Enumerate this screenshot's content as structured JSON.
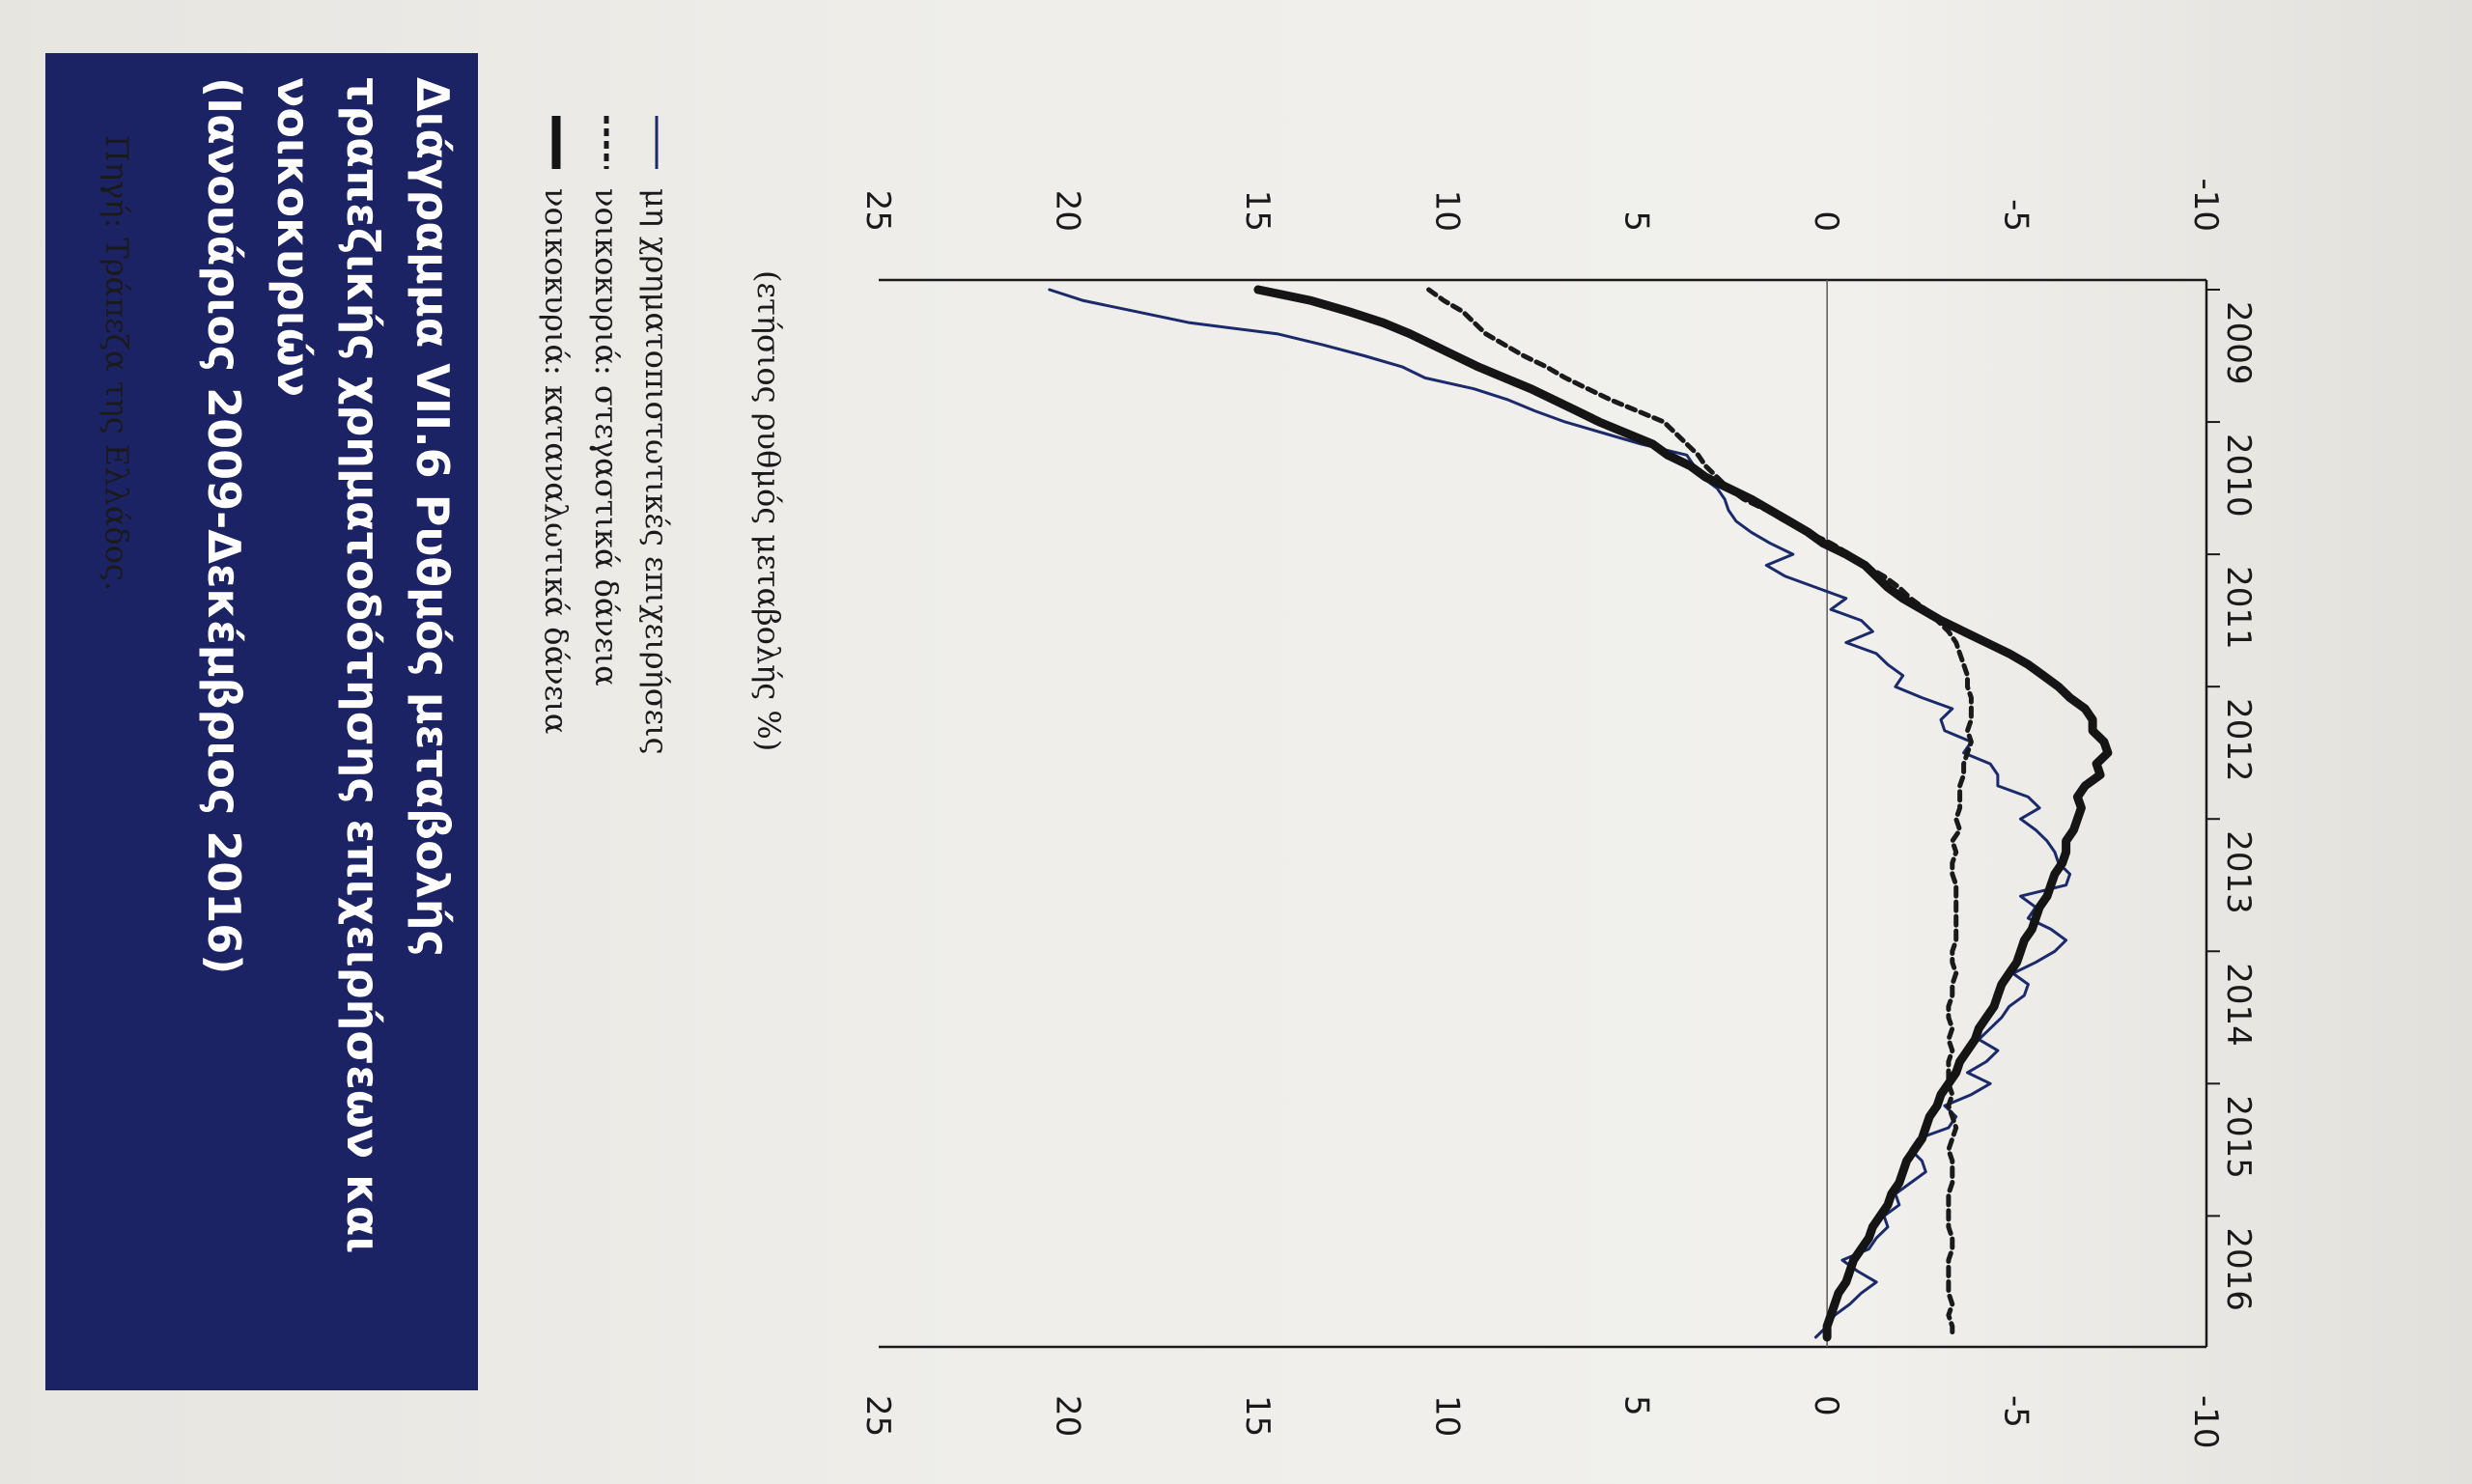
{
  "title": "Διάγραμμα VII.6 Ρυθμός μεταβολής τραπεζικής χρηματοδότησης επιχειρήσεων και νοικοκυριών (Ιανουάριος 2009-Δεκέμβριος 2016)",
  "unit_label": "(ετήσιος ρυθμός μεταβολής %)",
  "source": "Πηγή: Τράπεζα της Ελλάδος.",
  "colors": {
    "title_bg": "#1c2365",
    "series_thin": "#1a2a6a",
    "series_dashed": "#1a1a1a",
    "series_thick": "#151515"
  },
  "chart_data": {
    "type": "line",
    "x_start": "2009-01",
    "x_end": "2016-12",
    "x_tick_labels": [
      "2009",
      "2010",
      "2011",
      "2012",
      "2013",
      "2014",
      "2015",
      "2016"
    ],
    "y_left_ticks": [
      "25",
      "20",
      "15",
      "10",
      "5",
      "0",
      "-5",
      "-10"
    ],
    "y_right_ticks": [
      "25",
      "20",
      "15",
      "10",
      "5",
      "0",
      "-5",
      "-10"
    ],
    "ylim": [
      -10,
      25
    ],
    "grid": false,
    "legend": "top",
    "series": [
      {
        "name": "μη χρηματοπιστωτικές επιχειρήσεις",
        "style": "thin",
        "points": [
          [
            0,
            20.5
          ],
          [
            1,
            19.6
          ],
          [
            2,
            18.2
          ],
          [
            3,
            16.8
          ],
          [
            4,
            14.5
          ],
          [
            5,
            13.3
          ],
          [
            6,
            12.2
          ],
          [
            7,
            11.2
          ],
          [
            8,
            10.6
          ],
          [
            9,
            9.3
          ],
          [
            10,
            8.4
          ],
          [
            11,
            7.7
          ],
          [
            12,
            6.9
          ],
          [
            13,
            5.9
          ],
          [
            14,
            4.9
          ],
          [
            15,
            3.7
          ],
          [
            16,
            3.5
          ],
          [
            17,
            3.3
          ],
          [
            18,
            2.9
          ],
          [
            19,
            2.7
          ],
          [
            20,
            2.6
          ],
          [
            21,
            2.4
          ],
          [
            22,
            2.0
          ],
          [
            23,
            1.5
          ],
          [
            24,
            0.9
          ],
          [
            25,
            1.6
          ],
          [
            26,
            1.1
          ],
          [
            27,
            0.3
          ],
          [
            28,
            -0.5
          ],
          [
            29,
            -0.1
          ],
          [
            30,
            -0.9
          ],
          [
            31,
            -1.2
          ],
          [
            32,
            -0.5
          ],
          [
            33,
            -1.3
          ],
          [
            34,
            -1.6
          ],
          [
            35,
            -2.0
          ],
          [
            36,
            -1.8
          ],
          [
            37,
            -2.5
          ],
          [
            38,
            -3.3
          ],
          [
            39,
            -3.0
          ],
          [
            40,
            -3.1
          ],
          [
            41,
            -3.8
          ],
          [
            42,
            -3.6
          ],
          [
            43,
            -4.3
          ],
          [
            44,
            -4.5
          ],
          [
            45,
            -4.5
          ],
          [
            46,
            -5.3
          ],
          [
            47,
            -5.6
          ],
          [
            48,
            -5.1
          ],
          [
            49,
            -5.5
          ],
          [
            50,
            -5.8
          ],
          [
            51,
            -6.0
          ],
          [
            52,
            -6.1
          ],
          [
            53,
            -6.4
          ],
          [
            54,
            -6.3
          ],
          [
            55,
            -5.1
          ],
          [
            56,
            -5.5
          ],
          [
            57,
            -5.3
          ],
          [
            58,
            -5.9
          ],
          [
            59,
            -6.3
          ],
          [
            60,
            -6.0
          ],
          [
            61,
            -5.5
          ],
          [
            62,
            -4.9
          ],
          [
            63,
            -5.3
          ],
          [
            64,
            -5.2
          ],
          [
            65,
            -4.8
          ],
          [
            66,
            -4.6
          ],
          [
            67,
            -4.3
          ],
          [
            68,
            -4.0
          ],
          [
            69,
            -4.5
          ],
          [
            70,
            -4.2
          ],
          [
            71,
            -3.7
          ],
          [
            72,
            -4.3
          ],
          [
            73,
            -3.8
          ],
          [
            74,
            -3.1
          ],
          [
            75,
            -3.4
          ],
          [
            76,
            -3.2
          ],
          [
            77,
            -2.4
          ],
          [
            78,
            -2.2
          ],
          [
            79,
            -2.5
          ],
          [
            80,
            -2.6
          ],
          [
            81,
            -2.2
          ],
          [
            82,
            -1.8
          ],
          [
            83,
            -1.9
          ],
          [
            84,
            -1.5
          ],
          [
            85,
            -1.6
          ],
          [
            86,
            -1.3
          ],
          [
            87,
            -1.1
          ],
          [
            88,
            -0.4
          ],
          [
            89,
            -0.8
          ],
          [
            90,
            -1.3
          ],
          [
            91,
            -0.9
          ],
          [
            92,
            -0.6
          ],
          [
            93,
            -0.2
          ],
          [
            94,
            0.0
          ],
          [
            95,
            0.3
          ]
        ]
      },
      {
        "name": "νοικοκυριά: στεγαστικά δάνεια",
        "style": "dashed",
        "points": [
          [
            0,
            10.5
          ],
          [
            1,
            10.1
          ],
          [
            2,
            9.6
          ],
          [
            3,
            9.3
          ],
          [
            4,
            9.0
          ],
          [
            5,
            8.5
          ],
          [
            6,
            8.0
          ],
          [
            7,
            7.4
          ],
          [
            8,
            6.9
          ],
          [
            9,
            6.3
          ],
          [
            10,
            5.7
          ],
          [
            11,
            5.0
          ],
          [
            12,
            4.3
          ],
          [
            13,
            4.0
          ],
          [
            14,
            3.7
          ],
          [
            15,
            3.4
          ],
          [
            16,
            3.2
          ],
          [
            17,
            2.9
          ],
          [
            18,
            2.6
          ],
          [
            19,
            2.2
          ],
          [
            20,
            1.6
          ],
          [
            21,
            1.1
          ],
          [
            22,
            0.5
          ],
          [
            23,
            -0.1
          ],
          [
            24,
            -0.6
          ],
          [
            25,
            -1.0
          ],
          [
            26,
            -1.5
          ],
          [
            27,
            -1.9
          ],
          [
            28,
            -2.2
          ],
          [
            29,
            -2.6
          ],
          [
            30,
            -2.9
          ],
          [
            31,
            -3.2
          ],
          [
            32,
            -3.4
          ],
          [
            33,
            -3.5
          ],
          [
            34,
            -3.6
          ],
          [
            35,
            -3.7
          ],
          [
            36,
            -3.7
          ],
          [
            37,
            -3.8
          ],
          [
            38,
            -3.8
          ],
          [
            39,
            -3.8
          ],
          [
            40,
            -3.7
          ],
          [
            41,
            -3.8
          ],
          [
            42,
            -3.7
          ],
          [
            43,
            -3.6
          ],
          [
            44,
            -3.6
          ],
          [
            45,
            -3.5
          ],
          [
            46,
            -3.5
          ],
          [
            47,
            -3.5
          ],
          [
            48,
            -3.4
          ],
          [
            49,
            -3.5
          ],
          [
            50,
            -3.3
          ],
          [
            51,
            -3.4
          ],
          [
            52,
            -3.3
          ],
          [
            53,
            -3.3
          ],
          [
            54,
            -3.4
          ],
          [
            55,
            -3.4
          ],
          [
            56,
            -3.4
          ],
          [
            57,
            -3.4
          ],
          [
            58,
            -3.4
          ],
          [
            59,
            -3.4
          ],
          [
            60,
            -3.3
          ],
          [
            61,
            -3.3
          ],
          [
            62,
            -3.4
          ],
          [
            63,
            -3.3
          ],
          [
            64,
            -3.3
          ],
          [
            65,
            -3.2
          ],
          [
            66,
            -3.2
          ],
          [
            67,
            -3.3
          ],
          [
            68,
            -3.2
          ],
          [
            69,
            -3.3
          ],
          [
            70,
            -3.2
          ],
          [
            71,
            -3.2
          ],
          [
            72,
            -3.2
          ],
          [
            73,
            -3.3
          ],
          [
            74,
            -3.2
          ],
          [
            75,
            -3.3
          ],
          [
            76,
            -3.4
          ],
          [
            77,
            -3.3
          ],
          [
            78,
            -3.2
          ],
          [
            79,
            -3.3
          ],
          [
            80,
            -3.3
          ],
          [
            81,
            -3.3
          ],
          [
            82,
            -3.2
          ],
          [
            83,
            -3.2
          ],
          [
            84,
            -3.2
          ],
          [
            85,
            -3.2
          ],
          [
            86,
            -3.3
          ],
          [
            87,
            -3.3
          ],
          [
            88,
            -3.2
          ],
          [
            89,
            -3.2
          ],
          [
            90,
            -3.2
          ],
          [
            91,
            -3.2
          ],
          [
            92,
            -3.3
          ],
          [
            93,
            -3.2
          ],
          [
            94,
            -3.3
          ],
          [
            95,
            -3.3
          ]
        ]
      },
      {
        "name": "νοικοκυριά: καταναλωτικά δάνεια",
        "style": "thick",
        "points": [
          [
            0,
            15.0
          ],
          [
            1,
            13.6
          ],
          [
            2,
            12.6
          ],
          [
            3,
            11.7
          ],
          [
            4,
            11.0
          ],
          [
            5,
            10.4
          ],
          [
            6,
            9.8
          ],
          [
            7,
            9.2
          ],
          [
            8,
            8.5
          ],
          [
            9,
            7.8
          ],
          [
            10,
            7.2
          ],
          [
            11,
            6.6
          ],
          [
            12,
            6.0
          ],
          [
            13,
            5.3
          ],
          [
            14,
            4.6
          ],
          [
            15,
            4.2
          ],
          [
            16,
            3.6
          ],
          [
            17,
            3.2
          ],
          [
            18,
            2.6
          ],
          [
            19,
            2.0
          ],
          [
            20,
            1.5
          ],
          [
            21,
            1.0
          ],
          [
            22,
            0.5
          ],
          [
            23,
            0.1
          ],
          [
            24,
            -0.5
          ],
          [
            25,
            -1.0
          ],
          [
            26,
            -1.3
          ],
          [
            27,
            -1.6
          ],
          [
            28,
            -2.0
          ],
          [
            29,
            -2.5
          ],
          [
            30,
            -3.0
          ],
          [
            31,
            -3.6
          ],
          [
            32,
            -4.2
          ],
          [
            33,
            -4.8
          ],
          [
            34,
            -5.3
          ],
          [
            35,
            -5.7
          ],
          [
            36,
            -6.1
          ],
          [
            37,
            -6.4
          ],
          [
            38,
            -6.8
          ],
          [
            39,
            -7.0
          ],
          [
            40,
            -7.0
          ],
          [
            41,
            -7.3
          ],
          [
            42,
            -7.4
          ],
          [
            43,
            -7.1
          ],
          [
            44,
            -7.2
          ],
          [
            45,
            -6.8
          ],
          [
            46,
            -6.6
          ],
          [
            47,
            -6.7
          ],
          [
            48,
            -6.6
          ],
          [
            49,
            -6.5
          ],
          [
            50,
            -6.3
          ],
          [
            51,
            -6.3
          ],
          [
            52,
            -6.2
          ],
          [
            53,
            -6.0
          ],
          [
            54,
            -5.9
          ],
          [
            55,
            -5.8
          ],
          [
            56,
            -5.6
          ],
          [
            57,
            -5.5
          ],
          [
            58,
            -5.4
          ],
          [
            59,
            -5.2
          ],
          [
            60,
            -5.1
          ],
          [
            61,
            -5.0
          ],
          [
            62,
            -4.8
          ],
          [
            63,
            -4.6
          ],
          [
            64,
            -4.5
          ],
          [
            65,
            -4.4
          ],
          [
            66,
            -4.2
          ],
          [
            67,
            -4.0
          ],
          [
            68,
            -3.9
          ],
          [
            69,
            -3.7
          ],
          [
            70,
            -3.5
          ],
          [
            71,
            -3.4
          ],
          [
            72,
            -3.2
          ],
          [
            73,
            -3.0
          ],
          [
            74,
            -2.9
          ],
          [
            75,
            -2.7
          ],
          [
            76,
            -2.6
          ],
          [
            77,
            -2.5
          ],
          [
            78,
            -2.3
          ],
          [
            79,
            -2.1
          ],
          [
            80,
            -2.0
          ],
          [
            81,
            -1.9
          ],
          [
            82,
            -1.7
          ],
          [
            83,
            -1.6
          ],
          [
            84,
            -1.4
          ],
          [
            85,
            -1.2
          ],
          [
            86,
            -1.1
          ],
          [
            87,
            -0.9
          ],
          [
            88,
            -0.7
          ],
          [
            89,
            -0.6
          ],
          [
            90,
            -0.5
          ],
          [
            91,
            -0.3
          ],
          [
            92,
            -0.2
          ],
          [
            93,
            -0.1
          ],
          [
            94,
            0.0
          ],
          [
            95,
            0.0
          ]
        ]
      }
    ]
  }
}
